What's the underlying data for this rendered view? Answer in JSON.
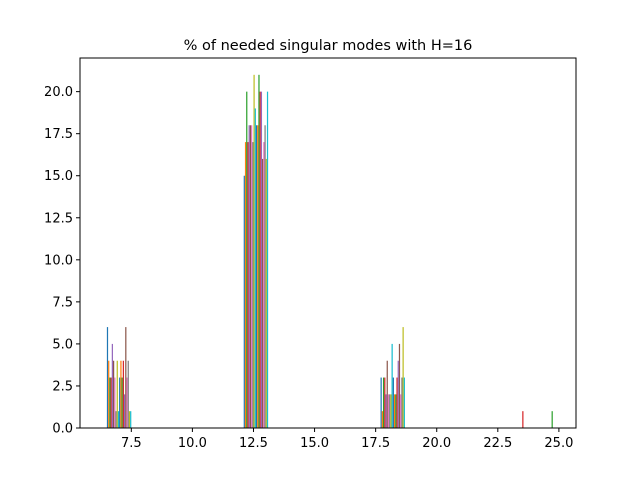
{
  "chart_data": {
    "type": "bar",
    "title": "% of needed singular modes with H=16",
    "xlabel": "",
    "ylabel": "",
    "xlim": [
      5.4,
      25.7
    ],
    "ylim": [
      0,
      22
    ],
    "grid": false,
    "legend": "none",
    "x_ticks": [
      7.5,
      10.0,
      12.5,
      15.0,
      17.5,
      20.0,
      22.5,
      25.0
    ],
    "x_tick_labels": [
      "7.5",
      "10.0",
      "12.5",
      "15.0",
      "17.5",
      "20.0",
      "22.5",
      "25.0"
    ],
    "y_ticks": [
      0.0,
      2.5,
      5.0,
      7.5,
      10.0,
      12.5,
      15.0,
      17.5,
      20.0
    ],
    "y_tick_labels": [
      "0.0",
      "2.5",
      "5.0",
      "7.5",
      "10.0",
      "12.5",
      "15.0",
      "17.5",
      "20.0"
    ],
    "colors": [
      "#1f77b4",
      "#ff7f0e",
      "#2ca02c",
      "#d62728",
      "#9467bd",
      "#8c564b",
      "#e377c2",
      "#7f7f7f",
      "#bcbd22",
      "#17becf"
    ],
    "bar_width": 0.05,
    "clusters": [
      {
        "x_start": 6.5,
        "values": [
          6,
          4,
          3,
          3,
          5,
          4,
          3,
          1,
          4,
          1,
          3,
          4,
          3,
          4,
          2,
          6,
          3,
          4,
          1,
          1
        ]
      },
      {
        "x_start": 12.1,
        "values": [
          15,
          17,
          20,
          17,
          18,
          18,
          18,
          17,
          21,
          19,
          18,
          18,
          21,
          20,
          20,
          16,
          17,
          18,
          16,
          20
        ]
      },
      {
        "x_start": 17.7,
        "values": [
          3,
          1,
          3,
          3,
          2,
          4,
          2,
          2,
          2,
          5,
          3,
          2,
          2,
          3,
          4,
          5,
          2,
          3,
          6,
          3
        ]
      },
      {
        "x_start": 23.5,
        "values": [
          1
        ]
      },
      {
        "x_start": 24.7,
        "values": [
          1
        ]
      }
    ],
    "isolated_colors": [
      "#d62728",
      "#2ca02c"
    ]
  }
}
